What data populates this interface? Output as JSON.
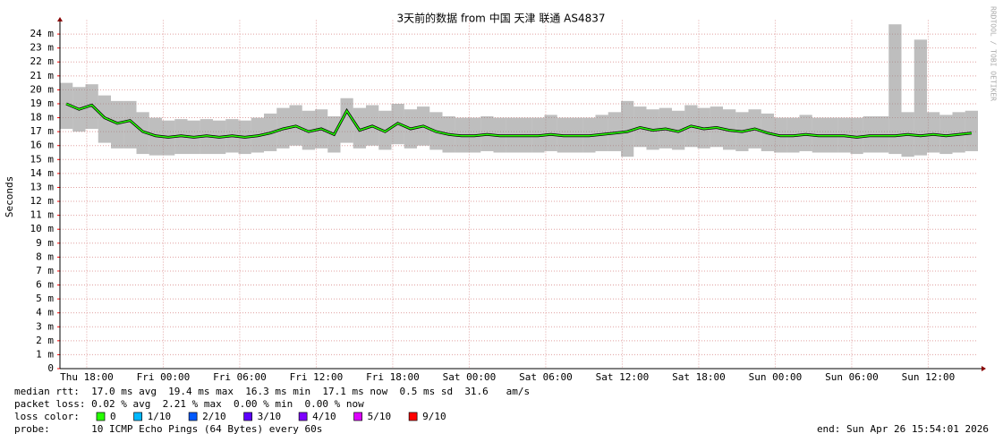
{
  "chart_data": {
    "type": "smoke",
    "title": "3天前的数据 from  中国 天津 联通 AS4837",
    "y_label": "Seconds",
    "side_label": "RRDTOOL / TOBI OETIKER",
    "xlim": [
      0,
      72
    ],
    "xticks": [
      {
        "value": 2.1,
        "label": "Thu 18:00"
      },
      {
        "value": 8.1,
        "label": "Fri 00:00"
      },
      {
        "value": 14.1,
        "label": "Fri 06:00"
      },
      {
        "value": 20.1,
        "label": "Fri 12:00"
      },
      {
        "value": 26.1,
        "label": "Fri 18:00"
      },
      {
        "value": 32.1,
        "label": "Sat 00:00"
      },
      {
        "value": 38.1,
        "label": "Sat 06:00"
      },
      {
        "value": 44.1,
        "label": "Sat 12:00"
      },
      {
        "value": 50.1,
        "label": "Sat 18:00"
      },
      {
        "value": 56.1,
        "label": "Sun 00:00"
      },
      {
        "value": 62.1,
        "label": "Sun 06:00"
      },
      {
        "value": 68.1,
        "label": "Sun 12:00"
      }
    ],
    "ylim": [
      0,
      0.025
    ],
    "yticks": [
      0,
      {
        "value": 0.001,
        "label": "1 m"
      },
      {
        "value": 0.002,
        "label": "2 m"
      },
      {
        "value": 0.003,
        "label": "3 m"
      },
      {
        "value": 0.004,
        "label": "4 m"
      },
      {
        "value": 0.005,
        "label": "5 m"
      },
      {
        "value": 0.006,
        "label": "6 m"
      },
      {
        "value": 0.007,
        "label": "7 m"
      },
      {
        "value": 0.008,
        "label": "8 m"
      },
      {
        "value": 0.009,
        "label": "9 m"
      },
      {
        "value": 0.01,
        "label": "10 m"
      },
      {
        "value": 0.011,
        "label": "11 m"
      },
      {
        "value": 0.012,
        "label": "12 m"
      },
      {
        "value": 0.013,
        "label": "13 m"
      },
      {
        "value": 0.014,
        "label": "14 m"
      },
      {
        "value": 0.015,
        "label": "15 m"
      },
      {
        "value": 0.016,
        "label": "16 m"
      },
      {
        "value": 0.017,
        "label": "17 m"
      },
      {
        "value": 0.018,
        "label": "18 m"
      },
      {
        "value": 0.019,
        "label": "19 m"
      },
      {
        "value": 0.02,
        "label": "20 m"
      },
      {
        "value": 0.021,
        "label": "21 m"
      },
      {
        "value": 0.022,
        "label": "22 m"
      },
      {
        "value": 0.023,
        "label": "23 m"
      },
      {
        "value": 0.024,
        "label": "24 m"
      }
    ],
    "grid": true,
    "x": [
      0.5,
      1.5,
      2.5,
      3.5,
      4.5,
      5.5,
      6.5,
      7.5,
      8.5,
      9.5,
      10.5,
      11.5,
      12.5,
      13.5,
      14.5,
      15.5,
      16.5,
      17.5,
      18.5,
      19.5,
      20.5,
      21.5,
      22.5,
      23.5,
      24.5,
      25.5,
      26.5,
      27.5,
      28.5,
      29.5,
      30.5,
      31.5,
      32.5,
      33.5,
      34.5,
      35.5,
      36.5,
      37.5,
      38.5,
      39.5,
      40.5,
      41.5,
      42.5,
      43.5,
      44.5,
      45.5,
      46.5,
      47.5,
      48.5,
      49.5,
      50.5,
      51.5,
      52.5,
      53.5,
      54.5,
      55.5,
      56.5,
      57.5,
      58.5,
      59.5,
      60.5,
      61.5,
      62.5,
      63.5,
      64.5,
      65.5,
      66.5,
      67.5,
      68.5,
      69.5,
      70.5,
      71.5
    ],
    "median": {
      "name": "median rtt",
      "color": "#26ff00",
      "values": [
        0.019,
        0.0186,
        0.0189,
        0.018,
        0.0176,
        0.0178,
        0.017,
        0.0167,
        0.0166,
        0.0167,
        0.0166,
        0.0167,
        0.0166,
        0.0167,
        0.0166,
        0.0167,
        0.0169,
        0.0172,
        0.0174,
        0.017,
        0.0172,
        0.0168,
        0.0185,
        0.0171,
        0.0174,
        0.017,
        0.0176,
        0.0172,
        0.0174,
        0.017,
        0.0168,
        0.0167,
        0.0167,
        0.0168,
        0.0167,
        0.0167,
        0.0167,
        0.0167,
        0.0168,
        0.0167,
        0.0167,
        0.0167,
        0.0168,
        0.0169,
        0.017,
        0.0173,
        0.0171,
        0.0172,
        0.017,
        0.0174,
        0.0172,
        0.0173,
        0.0171,
        0.017,
        0.0172,
        0.0169,
        0.0167,
        0.0167,
        0.0168,
        0.0167,
        0.0167,
        0.0167,
        0.0166,
        0.0167,
        0.0167,
        0.0167,
        0.0168,
        0.0167,
        0.0168,
        0.0167,
        0.0168,
        0.0169
      ]
    },
    "smoke": {
      "color": "#888888",
      "min": [
        0.0172,
        0.017,
        0.0172,
        0.0162,
        0.0158,
        0.0158,
        0.0154,
        0.0153,
        0.0153,
        0.0154,
        0.0154,
        0.0154,
        0.0154,
        0.0155,
        0.0154,
        0.0155,
        0.0156,
        0.0158,
        0.016,
        0.0157,
        0.0158,
        0.0155,
        0.0162,
        0.0158,
        0.016,
        0.0157,
        0.0161,
        0.0158,
        0.016,
        0.0157,
        0.0155,
        0.0155,
        0.0155,
        0.0156,
        0.0155,
        0.0155,
        0.0155,
        0.0155,
        0.0156,
        0.0155,
        0.0155,
        0.0155,
        0.0156,
        0.0156,
        0.0152,
        0.0159,
        0.0157,
        0.0158,
        0.0157,
        0.0159,
        0.0158,
        0.0159,
        0.0157,
        0.0156,
        0.0158,
        0.0156,
        0.0155,
        0.0155,
        0.0156,
        0.0155,
        0.0155,
        0.0155,
        0.0154,
        0.0155,
        0.0155,
        0.0154,
        0.0152,
        0.0153,
        0.0155,
        0.0154,
        0.0155,
        0.0156
      ],
      "max": [
        0.0205,
        0.0202,
        0.0204,
        0.0196,
        0.0192,
        0.0192,
        0.0184,
        0.018,
        0.0178,
        0.0179,
        0.0178,
        0.0179,
        0.0178,
        0.0179,
        0.0178,
        0.018,
        0.0183,
        0.0187,
        0.0189,
        0.0185,
        0.0186,
        0.0181,
        0.0194,
        0.0187,
        0.0189,
        0.0185,
        0.019,
        0.0186,
        0.0188,
        0.0184,
        0.0181,
        0.018,
        0.018,
        0.0181,
        0.018,
        0.018,
        0.018,
        0.018,
        0.0182,
        0.018,
        0.018,
        0.018,
        0.0182,
        0.0184,
        0.0192,
        0.0188,
        0.0186,
        0.0187,
        0.0185,
        0.0189,
        0.0187,
        0.0188,
        0.0186,
        0.0184,
        0.0186,
        0.0183,
        0.018,
        0.018,
        0.0182,
        0.018,
        0.018,
        0.018,
        0.018,
        0.0181,
        0.0181,
        0.0247,
        0.0184,
        0.0236,
        0.0184,
        0.0182,
        0.0184,
        0.0185
      ]
    },
    "stats": [
      "median rtt:  17.0 ms avg  19.4 ms max  16.3 ms min  17.1 ms now  0.5 ms sd  31.6   am/s",
      "packet loss: 0.02 % avg  2.21 % max  0.00 % min  0.00 % now"
    ],
    "loss_legend": {
      "label": "loss color:",
      "items": [
        {
          "name": "0",
          "color": "#26ff00"
        },
        {
          "name": "1/10",
          "color": "#00b8ff"
        },
        {
          "name": "2/10",
          "color": "#0059ff"
        },
        {
          "name": "3/10",
          "color": "#5e00ff"
        },
        {
          "name": "4/10",
          "color": "#7e00ff"
        },
        {
          "name": "5/10",
          "color": "#dd00ff"
        },
        {
          "name": "9/10",
          "color": "#ff0000"
        }
      ]
    },
    "probe": "probe:       10 ICMP Echo Pings (64 Bytes) every 60s",
    "end": "end: Sun Apr 26 15:54:01 2026"
  }
}
